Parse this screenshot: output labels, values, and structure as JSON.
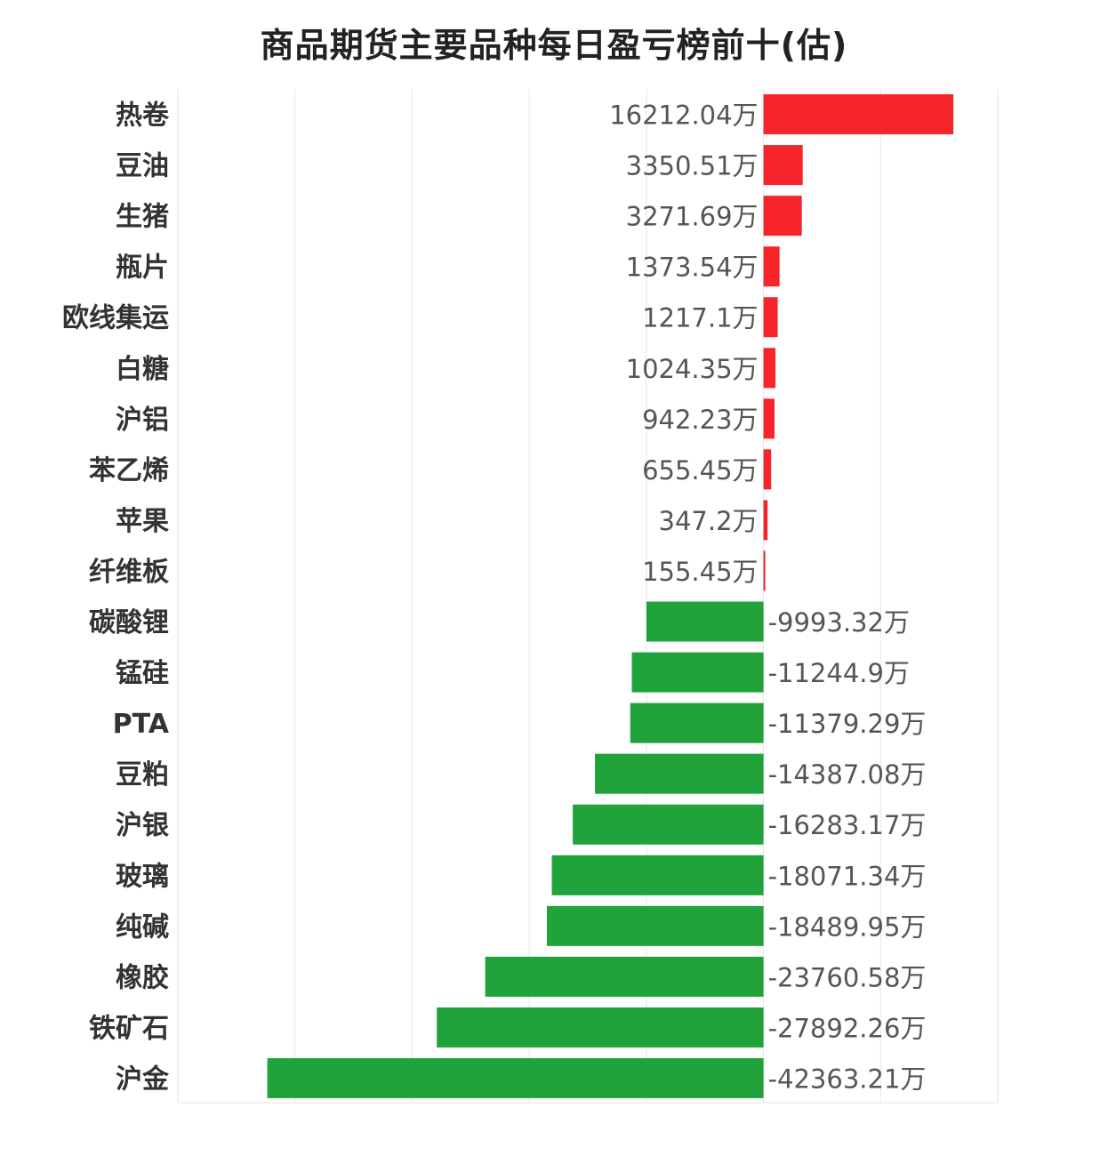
{
  "chart_data": {
    "type": "bar",
    "orientation": "horizontal",
    "title": "商品期货主要品种每日盈亏榜前十(估)",
    "unit_suffix": "万",
    "categories": [
      "热卷",
      "豆油",
      "生猪",
      "瓶片",
      "欧线集运",
      "白糖",
      "沪铝",
      "苯乙烯",
      "苹果",
      "纤维板",
      "碳酸锂",
      "锰硅",
      "PTA",
      "豆粕",
      "沪银",
      "玻璃",
      "纯碱",
      "橡胶",
      "铁矿石",
      "沪金"
    ],
    "values": [
      16212.04,
      3350.51,
      3271.69,
      1373.54,
      1217.1,
      1024.35,
      942.23,
      655.45,
      347.2,
      155.45,
      -9993.32,
      -11244.9,
      -11379.29,
      -14387.08,
      -16283.17,
      -18071.34,
      -18489.95,
      -23760.58,
      -27892.26,
      -42363.21
    ],
    "value_labels": [
      "16212.04万",
      "3350.51万",
      "3271.69万",
      "1373.54万",
      "1217.1万",
      "1024.35万",
      "942.23万",
      "655.45万",
      "347.2万",
      "155.45万",
      "-9993.32万",
      "-11244.9万",
      "-11379.29万",
      "-14387.08万",
      "-16283.17万",
      "-18071.34万",
      "-18489.95万",
      "-23760.58万",
      "-27892.26万",
      "-42363.21万"
    ],
    "xlim": [
      -50000,
      20000
    ],
    "grid": true,
    "legend": "none",
    "colors": {
      "positive": "#f5252a",
      "negative": "#21a33b",
      "grid": "#e6e6e6"
    }
  }
}
